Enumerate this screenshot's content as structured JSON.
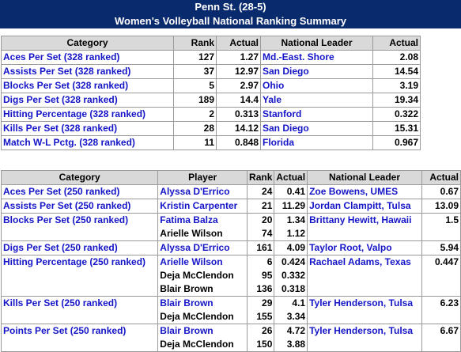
{
  "header": {
    "title": "Penn St. (28-5)",
    "subtitle": "Women's Volleyball National Ranking Summary"
  },
  "table1": {
    "headers": [
      "Category",
      "Rank",
      "Actual",
      "National Leader",
      "Actual"
    ],
    "rows": [
      {
        "category": "Aces Per Set (328 ranked)",
        "rank": "127",
        "actual": "1.27",
        "leader": "Md.-East. Shore",
        "leader_actual": "2.08"
      },
      {
        "category": "Assists Per Set (328 ranked)",
        "rank": "37",
        "actual": "12.97",
        "leader": "San Diego",
        "leader_actual": "14.54"
      },
      {
        "category": "Blocks Per Set (328 ranked)",
        "rank": "5",
        "actual": "2.97",
        "leader": "Ohio",
        "leader_actual": "3.19"
      },
      {
        "category": "Digs Per Set (328 ranked)",
        "rank": "189",
        "actual": "14.4",
        "leader": "Yale",
        "leader_actual": "19.34"
      },
      {
        "category": "Hitting Percentage (328 ranked)",
        "rank": "2",
        "actual": "0.313",
        "leader": "Stanford",
        "leader_actual": "0.322"
      },
      {
        "category": "Kills Per Set (328 ranked)",
        "rank": "28",
        "actual": "14.12",
        "leader": "San Diego",
        "leader_actual": "15.31"
      },
      {
        "category": "Match W-L Pctg. (328 ranked)",
        "rank": "11",
        "actual": "0.848",
        "leader": "Florida",
        "leader_actual": "0.967"
      }
    ]
  },
  "table2": {
    "headers": [
      "Category",
      "Player",
      "Rank",
      "Actual",
      "National Leader",
      "Actual"
    ],
    "rows": [
      {
        "category": "Aces Per Set (250 ranked)",
        "players": [
          {
            "name": "Alyssa D'Errico",
            "rank": "24",
            "actual": "0.41"
          }
        ],
        "leader": "Zoe Bowens, UMES",
        "leader_actual": "0.67"
      },
      {
        "category": "Assists Per Set (250 ranked)",
        "players": [
          {
            "name": "Kristin Carpenter",
            "rank": "21",
            "actual": "11.29"
          }
        ],
        "leader": "Jordan Clampitt, Tulsa",
        "leader_actual": "13.09"
      },
      {
        "category": "Blocks Per Set (250 ranked)",
        "players": [
          {
            "name": "Fatima Balza",
            "rank": "20",
            "actual": "1.34"
          },
          {
            "name": "Arielle Wilson",
            "rank": "74",
            "actual": "1.12"
          }
        ],
        "leader": "Brittany Hewitt, Hawaii",
        "leader_actual": "1.5"
      },
      {
        "category": "Digs Per Set (250 ranked)",
        "players": [
          {
            "name": "Alyssa D'Errico",
            "rank": "161",
            "actual": "4.09"
          }
        ],
        "leader": "Taylor Root, Valpo",
        "leader_actual": "5.94"
      },
      {
        "category": "Hitting Percentage (250 ranked)",
        "players": [
          {
            "name": "Arielle Wilson",
            "rank": "6",
            "actual": "0.424"
          },
          {
            "name": "Deja McClendon",
            "rank": "95",
            "actual": "0.332"
          },
          {
            "name": "Blair Brown",
            "rank": "136",
            "actual": "0.318"
          }
        ],
        "leader": "Rachael Adams, Texas",
        "leader_actual": "0.447"
      },
      {
        "category": "Kills Per Set (250 ranked)",
        "players": [
          {
            "name": "Blair Brown",
            "rank": "29",
            "actual": "4.1"
          },
          {
            "name": "Deja McClendon",
            "rank": "155",
            "actual": "3.34"
          }
        ],
        "leader": "Tyler Henderson, Tulsa",
        "leader_actual": "6.23"
      },
      {
        "category": "Points Per Set (250 ranked)",
        "players": [
          {
            "name": "Blair Brown",
            "rank": "26",
            "actual": "4.72"
          },
          {
            "name": "Deja McClendon",
            "rank": "150",
            "actual": "3.88"
          }
        ],
        "leader": "Tyler Henderson, Tulsa",
        "leader_actual": "6.67"
      }
    ]
  }
}
